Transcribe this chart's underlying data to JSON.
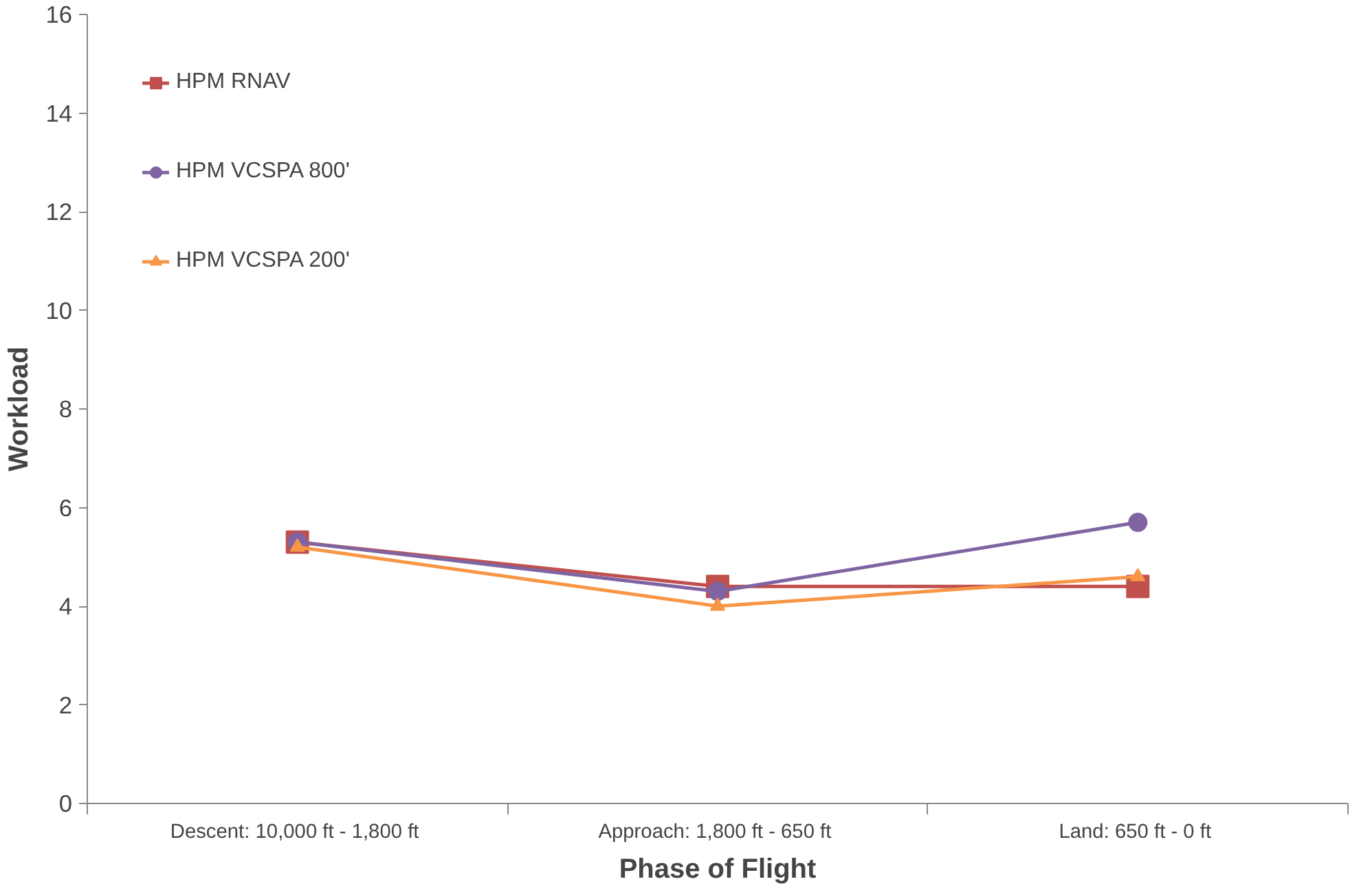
{
  "chart_data": {
    "type": "line",
    "xlabel": "Phase of Flight",
    "ylabel": "Workload",
    "categories": [
      "Descent:  10,000 ft - 1,800 ft",
      "Approach:  1,800 ft - 650 ft",
      "Land:  650 ft - 0 ft"
    ],
    "series": [
      {
        "name": "HPM RNAV",
        "color": "#c0504d",
        "values": [
          5.3,
          4.4,
          4.4
        ],
        "marker": "square"
      },
      {
        "name": "HPM VCSPA 800'",
        "color": "#8064a2",
        "values": [
          5.3,
          4.3,
          5.7
        ],
        "marker": "circle"
      },
      {
        "name": "HPM VCSPA 200'",
        "color": "#f79646",
        "values": [
          5.2,
          4.0,
          4.6
        ],
        "marker": "triangle"
      }
    ],
    "ylim": [
      0,
      16
    ],
    "yticks": [
      0,
      2,
      4,
      6,
      8,
      10,
      12,
      14,
      16
    ],
    "grid": false,
    "legend": "top left",
    "line_style": "solid"
  }
}
